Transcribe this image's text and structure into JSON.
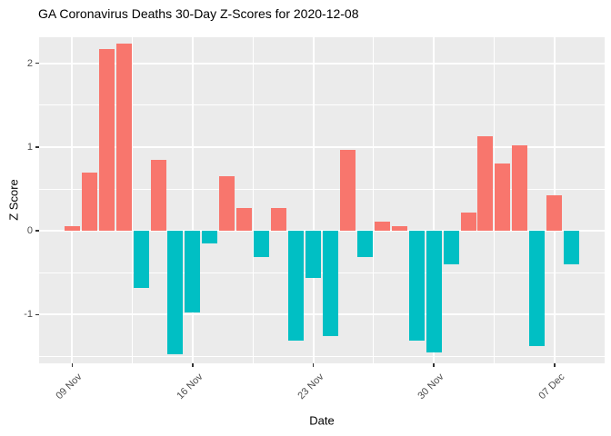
{
  "title": "GA Coronavirus Deaths 30-Day Z-Scores for 2020-12-08",
  "chart_data": {
    "type": "bar",
    "title": "GA Coronavirus Deaths 30-Day Z-Scores for 2020-12-08",
    "xlabel": "Date",
    "ylabel": "Z Score",
    "categories": [
      "09 Nov",
      "10 Nov",
      "11 Nov",
      "12 Nov",
      "13 Nov",
      "14 Nov",
      "15 Nov",
      "16 Nov",
      "17 Nov",
      "18 Nov",
      "19 Nov",
      "20 Nov",
      "21 Nov",
      "22 Nov",
      "23 Nov",
      "24 Nov",
      "25 Nov",
      "26 Nov",
      "27 Nov",
      "28 Nov",
      "29 Nov",
      "30 Nov",
      "01 Dec",
      "02 Dec",
      "03 Dec",
      "04 Dec",
      "05 Dec",
      "06 Dec",
      "07 Dec",
      "08 Dec"
    ],
    "values": [
      0.06,
      0.7,
      2.17,
      2.23,
      -0.68,
      0.85,
      -1.47,
      -0.97,
      -0.15,
      0.65,
      0.27,
      -0.31,
      0.27,
      -1.31,
      -0.56,
      -1.25,
      0.97,
      -0.31,
      0.11,
      0.06,
      -1.31,
      -1.45,
      -0.4,
      0.22,
      1.13,
      0.8,
      1.02,
      -1.37,
      0.43,
      -0.4
    ],
    "x_tick_indices": [
      0,
      7,
      14,
      21,
      28
    ],
    "x_tick_labels": [
      "09 Nov",
      "16 Nov",
      "23 Nov",
      "30 Nov",
      "07 Dec"
    ],
    "y_ticks": [
      2,
      1,
      0,
      -1
    ],
    "y_tick_labels": [
      "2",
      "1",
      "0",
      "-1"
    ],
    "y_minor_ticks": [
      1.5,
      0.5,
      -0.5,
      -1.5
    ],
    "ylim": [
      -1.58,
      2.31
    ],
    "grid": true,
    "legend": "none",
    "colors": {
      "positive": "#F8766D",
      "negative": "#00BFC4",
      "panel_bg": "#EBEBEB",
      "grid": "#FFFFFF",
      "axis_text": "#4D4D4D",
      "tick_mark": "#333333",
      "title_text": "#000000"
    }
  }
}
